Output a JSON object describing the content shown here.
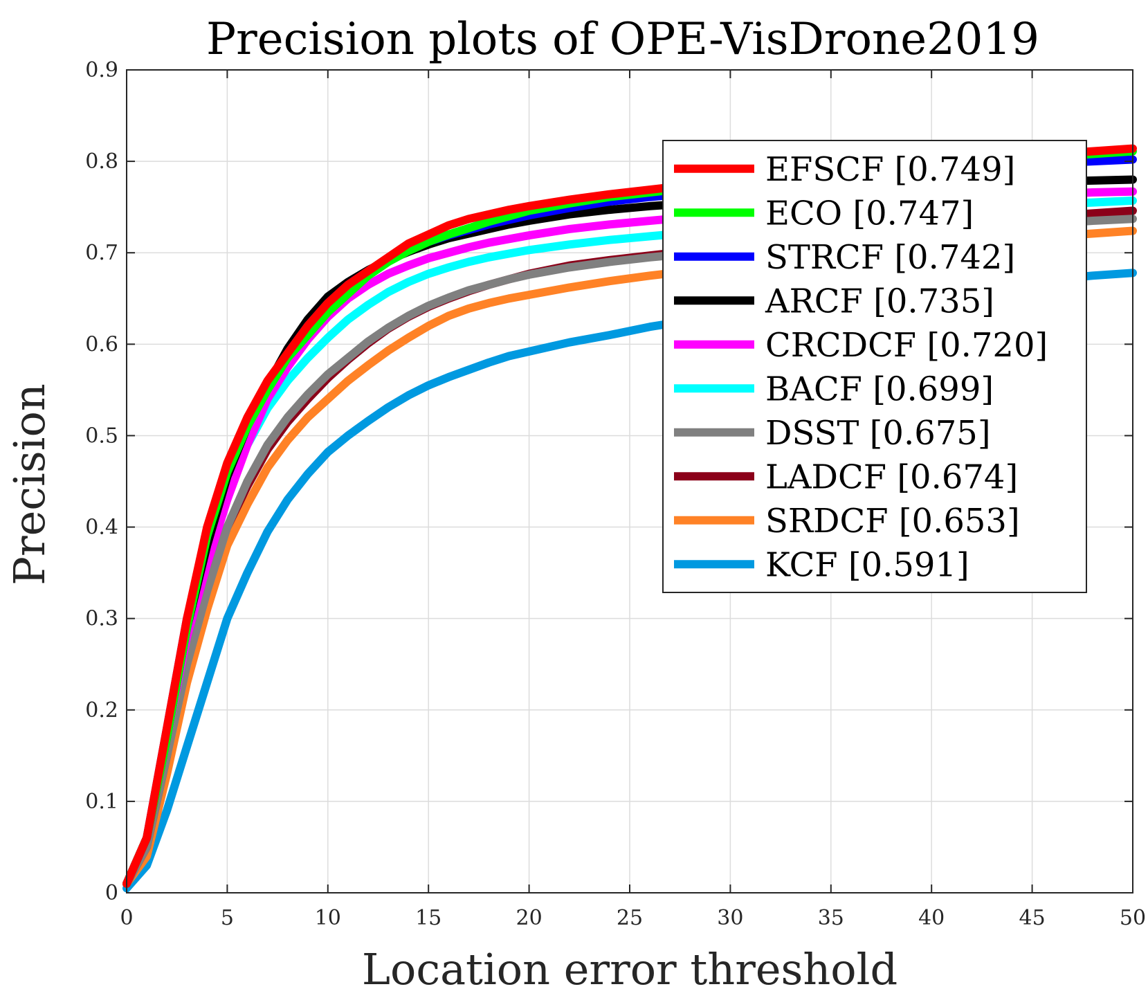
{
  "chart_data": {
    "type": "line",
    "title": "Precision plots of OPE-VisDrone2019",
    "xlabel": "Location error threshold",
    "ylabel": "Precision",
    "xlim": [
      0,
      50
    ],
    "ylim": [
      0,
      0.9
    ],
    "xticks": [
      0,
      5,
      10,
      15,
      20,
      25,
      30,
      35,
      40,
      45,
      50
    ],
    "yticks": [
      0,
      0.1,
      0.2,
      0.3,
      0.4,
      0.5,
      0.6,
      0.7,
      0.8,
      0.9
    ],
    "xtick_labels": [
      "0",
      "5",
      "10",
      "15",
      "20",
      "25",
      "30",
      "35",
      "40",
      "45",
      "50"
    ],
    "ytick_labels": [
      "0",
      "0.1",
      "0.2",
      "0.3",
      "0.4",
      "0.5",
      "0.6",
      "0.7",
      "0.8",
      "0.9"
    ],
    "grid": true,
    "legend_position": "top-right",
    "x": [
      0,
      1,
      2,
      3,
      4,
      5,
      6,
      7,
      8,
      9,
      10,
      11,
      12,
      13,
      14,
      15,
      16,
      17,
      18,
      19,
      20,
      22,
      24,
      26,
      28,
      30,
      32,
      34,
      36,
      38,
      40,
      42,
      44,
      46,
      48,
      50
    ],
    "series": [
      {
        "name": "EFSCF",
        "score": "[0.749]",
        "color": "#ff0000",
        "values": [
          0.01,
          0.06,
          0.18,
          0.3,
          0.4,
          0.47,
          0.52,
          0.56,
          0.59,
          0.62,
          0.645,
          0.665,
          0.68,
          0.695,
          0.71,
          0.72,
          0.73,
          0.737,
          0.742,
          0.747,
          0.751,
          0.758,
          0.764,
          0.769,
          0.774,
          0.778,
          0.782,
          0.786,
          0.79,
          0.794,
          0.798,
          0.802,
          0.805,
          0.808,
          0.811,
          0.814
        ]
      },
      {
        "name": "ECO",
        "score": "[0.747]",
        "color": "#00ff00",
        "values": [
          0.01,
          0.06,
          0.17,
          0.29,
          0.39,
          0.46,
          0.51,
          0.55,
          0.585,
          0.61,
          0.635,
          0.655,
          0.675,
          0.69,
          0.702,
          0.712,
          0.72,
          0.727,
          0.734,
          0.74,
          0.746,
          0.754,
          0.761,
          0.766,
          0.771,
          0.775,
          0.779,
          0.783,
          0.787,
          0.791,
          0.795,
          0.799,
          0.802,
          0.805,
          0.808,
          0.811
        ]
      },
      {
        "name": "STRCF",
        "score": "[0.742]",
        "color": "#0000ff",
        "values": [
          0.01,
          0.06,
          0.18,
          0.3,
          0.39,
          0.465,
          0.515,
          0.555,
          0.59,
          0.62,
          0.645,
          0.665,
          0.68,
          0.693,
          0.703,
          0.712,
          0.719,
          0.725,
          0.731,
          0.736,
          0.741,
          0.749,
          0.756,
          0.761,
          0.765,
          0.769,
          0.773,
          0.777,
          0.781,
          0.785,
          0.789,
          0.792,
          0.795,
          0.798,
          0.8,
          0.802
        ]
      },
      {
        "name": "ARCF",
        "score": "[0.735]",
        "color": "#000000",
        "values": [
          0.01,
          0.06,
          0.17,
          0.29,
          0.38,
          0.455,
          0.51,
          0.555,
          0.595,
          0.627,
          0.652,
          0.668,
          0.681,
          0.692,
          0.701,
          0.709,
          0.716,
          0.721,
          0.726,
          0.731,
          0.735,
          0.742,
          0.747,
          0.751,
          0.754,
          0.757,
          0.76,
          0.763,
          0.766,
          0.769,
          0.772,
          0.774,
          0.776,
          0.778,
          0.779,
          0.78
        ]
      },
      {
        "name": "CRCDCF",
        "score": "[0.720]",
        "color": "#ff00ff",
        "values": [
          0.01,
          0.06,
          0.17,
          0.28,
          0.36,
          0.43,
          0.49,
          0.54,
          0.575,
          0.605,
          0.63,
          0.65,
          0.665,
          0.677,
          0.686,
          0.694,
          0.7,
          0.706,
          0.711,
          0.715,
          0.719,
          0.726,
          0.731,
          0.735,
          0.739,
          0.743,
          0.746,
          0.749,
          0.752,
          0.755,
          0.758,
          0.76,
          0.762,
          0.764,
          0.766,
          0.767
        ]
      },
      {
        "name": "BACF",
        "score": "[0.699]",
        "color": "#00ffff",
        "values": [
          0.01,
          0.06,
          0.17,
          0.28,
          0.37,
          0.44,
          0.49,
          0.53,
          0.56,
          0.585,
          0.607,
          0.627,
          0.643,
          0.657,
          0.668,
          0.677,
          0.684,
          0.69,
          0.695,
          0.699,
          0.703,
          0.709,
          0.714,
          0.718,
          0.722,
          0.726,
          0.73,
          0.734,
          0.737,
          0.741,
          0.744,
          0.747,
          0.75,
          0.753,
          0.755,
          0.757
        ]
      },
      {
        "name": "DSST",
        "score": "[0.675]",
        "color": "#808080",
        "values": [
          0.01,
          0.05,
          0.15,
          0.25,
          0.33,
          0.4,
          0.45,
          0.49,
          0.52,
          0.545,
          0.567,
          0.585,
          0.603,
          0.618,
          0.631,
          0.642,
          0.651,
          0.659,
          0.665,
          0.671,
          0.676,
          0.684,
          0.69,
          0.695,
          0.699,
          0.703,
          0.707,
          0.711,
          0.715,
          0.719,
          0.723,
          0.726,
          0.729,
          0.732,
          0.735,
          0.737
        ]
      },
      {
        "name": "LADCF",
        "score": "[0.674]",
        "color": "#8b0019",
        "values": [
          0.01,
          0.05,
          0.15,
          0.26,
          0.34,
          0.4,
          0.445,
          0.485,
          0.515,
          0.54,
          0.563,
          0.583,
          0.601,
          0.617,
          0.63,
          0.641,
          0.65,
          0.658,
          0.665,
          0.671,
          0.677,
          0.686,
          0.692,
          0.697,
          0.702,
          0.707,
          0.712,
          0.717,
          0.721,
          0.725,
          0.729,
          0.733,
          0.737,
          0.74,
          0.743,
          0.746
        ]
      },
      {
        "name": "SRDCF",
        "score": "[0.653]",
        "color": "#ff8226",
        "values": [
          0.01,
          0.04,
          0.13,
          0.23,
          0.31,
          0.38,
          0.425,
          0.465,
          0.495,
          0.52,
          0.54,
          0.56,
          0.577,
          0.593,
          0.607,
          0.62,
          0.631,
          0.639,
          0.645,
          0.65,
          0.654,
          0.662,
          0.669,
          0.675,
          0.68,
          0.685,
          0.69,
          0.694,
          0.698,
          0.702,
          0.706,
          0.71,
          0.714,
          0.718,
          0.721,
          0.724
        ]
      },
      {
        "name": "KCF",
        "score": "[0.591]",
        "color": "#0099e0",
        "values": [
          0.005,
          0.03,
          0.09,
          0.16,
          0.23,
          0.3,
          0.35,
          0.395,
          0.43,
          0.458,
          0.482,
          0.5,
          0.516,
          0.531,
          0.544,
          0.555,
          0.564,
          0.572,
          0.58,
          0.587,
          0.592,
          0.602,
          0.61,
          0.619,
          0.626,
          0.632,
          0.638,
          0.643,
          0.648,
          0.653,
          0.658,
          0.663,
          0.667,
          0.671,
          0.675,
          0.678
        ]
      }
    ]
  }
}
